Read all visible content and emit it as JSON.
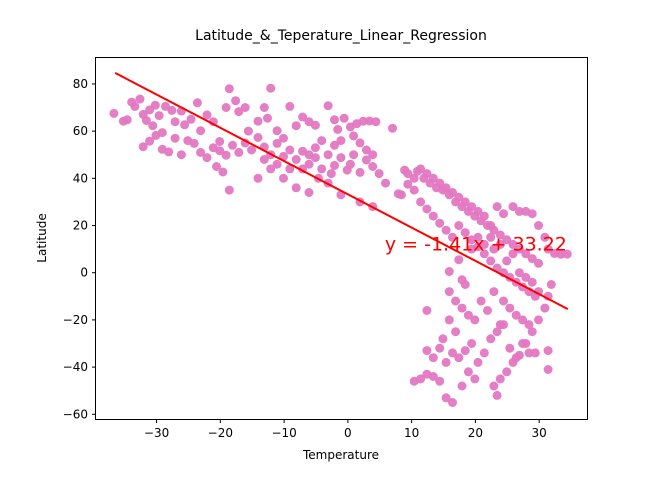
{
  "chart_data": {
    "type": "scatter",
    "title": "Latitude_&_Teperature_Linear_Regression",
    "xlabel": "Temperature",
    "ylabel": "Latitude",
    "xlim": [
      -39.5,
      37.5
    ],
    "ylim": [
      -62,
      91
    ],
    "xticks": [
      -30,
      -20,
      -10,
      0,
      10,
      20,
      30
    ],
    "yticks": [
      -60,
      -40,
      -20,
      0,
      20,
      40,
      60,
      80
    ],
    "grid": false,
    "marker_color": "#e377c2",
    "line_color": "#ff0000",
    "regression": {
      "slope": -1.41,
      "intercept": 33.22,
      "x_range": [
        -36.5,
        34.5
      ]
    },
    "annotation": {
      "text": "y = -1.41x + 33.22",
      "x": 5.8,
      "y": 9.5
    },
    "points": [
      [
        -36.7,
        67.5
      ],
      [
        -35.2,
        64.2
      ],
      [
        -34.6,
        64.8
      ],
      [
        -33.9,
        72.3
      ],
      [
        -33.4,
        70.5
      ],
      [
        -32.6,
        73.6
      ],
      [
        -32.1,
        67.1
      ],
      [
        -31.6,
        64.5
      ],
      [
        -31.1,
        69.0
      ],
      [
        -30.6,
        62.3
      ],
      [
        -30.2,
        71.0
      ],
      [
        -29.6,
        66.6
      ],
      [
        -29.1,
        59.4
      ],
      [
        -28.6,
        70.5
      ],
      [
        -27.6,
        68.8
      ],
      [
        -27.1,
        64.0
      ],
      [
        -26.1,
        68.5
      ],
      [
        -25.6,
        62.7
      ],
      [
        -24.6,
        65.0
      ],
      [
        -23.6,
        72.0
      ],
      [
        -23.1,
        60.2
      ],
      [
        -22.1,
        66.9
      ],
      [
        -21.1,
        64.0
      ],
      [
        -20.1,
        55.6
      ],
      [
        -19.1,
        70.0
      ],
      [
        -18.6,
        78.0
      ],
      [
        -17.6,
        72.9
      ],
      [
        -17.1,
        68.3
      ],
      [
        -16.1,
        70.0
      ],
      [
        -15.6,
        60.0
      ],
      [
        -14.1,
        64.2
      ],
      [
        -13.1,
        70.0
      ],
      [
        -12.1,
        78.2
      ],
      [
        -12.6,
        65.5
      ],
      [
        -11.1,
        60.2
      ],
      [
        -10.1,
        57.0
      ],
      [
        -9.1,
        70.5
      ],
      [
        -8.1,
        62.3
      ],
      [
        -7.1,
        66.0
      ],
      [
        -6.1,
        64.0
      ],
      [
        -5.1,
        62.5
      ],
      [
        -3.1,
        70.8
      ],
      [
        -2.1,
        64.8
      ],
      [
        -1.6,
        60.7
      ],
      [
        -0.6,
        65.5
      ],
      [
        0.4,
        61.8
      ],
      [
        1.4,
        63.2
      ],
      [
        2.4,
        64.2
      ],
      [
        3.4,
        64.3
      ],
      [
        4.4,
        64.0
      ],
      [
        7.0,
        61.2
      ],
      [
        -32.1,
        53.4
      ],
      [
        -31.1,
        55.8
      ],
      [
        -30.1,
        58.2
      ],
      [
        -29.1,
        52.3
      ],
      [
        -28.1,
        51.2
      ],
      [
        -27.1,
        57.0
      ],
      [
        -26.1,
        50.0
      ],
      [
        -25.1,
        56.0
      ],
      [
        -24.1,
        54.8
      ],
      [
        -23.1,
        51.0
      ],
      [
        -22.1,
        48.8
      ],
      [
        -21.1,
        53.0
      ],
      [
        -20.1,
        51.7
      ],
      [
        -19.1,
        49.8
      ],
      [
        -18.1,
        54.0
      ],
      [
        -17.1,
        51.0
      ],
      [
        -16.1,
        55.0
      ],
      [
        -15.1,
        52.0
      ],
      [
        -14.1,
        57.3
      ],
      [
        -13.1,
        53.3
      ],
      [
        -12.1,
        50.0
      ],
      [
        -11.1,
        54.8
      ],
      [
        -10.1,
        49.3
      ],
      [
        -9.1,
        52.0
      ],
      [
        -8.1,
        48.0
      ],
      [
        -7.1,
        51.5
      ],
      [
        -6.1,
        46.0
      ],
      [
        -5.1,
        48.8
      ],
      [
        -4.1,
        44.0
      ],
      [
        -3.1,
        50.0
      ],
      [
        -2.1,
        45.5
      ],
      [
        -1.1,
        48.8
      ],
      [
        -0.1,
        43.5
      ],
      [
        0.9,
        50.0
      ],
      [
        1.9,
        42.5
      ],
      [
        2.9,
        47.8
      ],
      [
        3.9,
        45.0
      ],
      [
        4.9,
        42.0
      ],
      [
        5.9,
        38.0
      ],
      [
        -20.6,
        45.0
      ],
      [
        -19.6,
        42.7
      ],
      [
        -18.6,
        35.0
      ],
      [
        -14.1,
        40.0
      ],
      [
        -12.1,
        44.0
      ],
      [
        -10.1,
        40.0
      ],
      [
        -8.1,
        36.0
      ],
      [
        -6.1,
        34.0
      ],
      [
        -3.1,
        38.0
      ],
      [
        -1.1,
        33.0
      ],
      [
        1.9,
        30.0
      ],
      [
        3.9,
        28.0
      ],
      [
        7.9,
        33.5
      ],
      [
        8.9,
        43.5
      ],
      [
        10.9,
        43.0
      ],
      [
        11.9,
        40.0
      ],
      [
        12.9,
        38.0
      ],
      [
        13.9,
        36.0
      ],
      [
        14.9,
        35.0
      ],
      [
        15.9,
        33.0
      ],
      [
        16.9,
        30.0
      ],
      [
        17.9,
        28.0
      ],
      [
        18.9,
        26.0
      ],
      [
        19.9,
        24.0
      ],
      [
        20.9,
        22.0
      ],
      [
        21.9,
        20.0
      ],
      [
        22.9,
        18.0
      ],
      [
        23.9,
        16.0
      ],
      [
        24.9,
        14.0
      ],
      [
        25.9,
        12.0
      ],
      [
        26.9,
        10.0
      ],
      [
        27.9,
        8.0
      ],
      [
        28.9,
        6.0
      ],
      [
        29.9,
        4.0
      ],
      [
        10.4,
        35.0
      ],
      [
        9.4,
        37.5
      ],
      [
        8.4,
        33.0
      ],
      [
        11.4,
        30.0
      ],
      [
        12.4,
        27.0
      ],
      [
        13.4,
        24.0
      ],
      [
        14.4,
        21.0
      ],
      [
        15.4,
        18.0
      ],
      [
        16.4,
        15.0
      ],
      [
        17.4,
        20.0
      ],
      [
        18.4,
        17.0
      ],
      [
        19.4,
        14.0
      ],
      [
        20.4,
        11.0
      ],
      [
        21.4,
        8.0
      ],
      [
        22.4,
        5.0
      ],
      [
        23.4,
        2.0
      ],
      [
        24.4,
        0.0
      ],
      [
        25.4,
        -2.0
      ],
      [
        26.4,
        -4.0
      ],
      [
        27.4,
        -6.0
      ],
      [
        28.4,
        -8.0
      ],
      [
        29.4,
        -10.0
      ],
      [
        25.9,
        28.0
      ],
      [
        26.9,
        26.0
      ],
      [
        27.9,
        26.0
      ],
      [
        28.9,
        25.0
      ],
      [
        29.9,
        20.0
      ],
      [
        30.9,
        15.0
      ],
      [
        31.4,
        10.0
      ],
      [
        32.4,
        8.2
      ],
      [
        33.4,
        7.8
      ],
      [
        34.4,
        7.9
      ],
      [
        31.9,
        -5.0
      ],
      [
        31.4,
        -10.0
      ],
      [
        30.9,
        -15.0
      ],
      [
        29.9,
        -20.0
      ],
      [
        28.9,
        -25.0
      ],
      [
        27.9,
        -30.0
      ],
      [
        26.9,
        -35.0
      ],
      [
        25.9,
        -38.0
      ],
      [
        24.9,
        -42.0
      ],
      [
        23.9,
        -45.0
      ],
      [
        22.9,
        -48.0
      ],
      [
        23.4,
        -52.0
      ],
      [
        19.9,
        -45.0
      ],
      [
        18.9,
        -42.0
      ],
      [
        17.9,
        -48.0
      ],
      [
        16.4,
        -55.0
      ],
      [
        15.4,
        -53.0
      ],
      [
        14.4,
        -46.0
      ],
      [
        13.4,
        -44.0
      ],
      [
        12.4,
        -43.0
      ],
      [
        11.4,
        -45.0
      ],
      [
        10.4,
        -46.0
      ],
      [
        12.4,
        -33.0
      ],
      [
        13.4,
        -36.0
      ],
      [
        14.4,
        -32.0
      ],
      [
        15.4,
        -38.0
      ],
      [
        16.4,
        -34.0
      ],
      [
        17.4,
        -36.0
      ],
      [
        18.4,
        -33.0
      ],
      [
        19.4,
        -30.0
      ],
      [
        20.4,
        -38.0
      ],
      [
        21.4,
        -34.0
      ],
      [
        22.4,
        -28.0
      ],
      [
        23.4,
        -25.0
      ],
      [
        24.4,
        -22.0
      ],
      [
        25.4,
        -32.0
      ],
      [
        26.4,
        -36.0
      ],
      [
        27.4,
        -30.0
      ],
      [
        28.4,
        -34.0
      ],
      [
        29.4,
        -34.0
      ],
      [
        31.4,
        -33.0
      ],
      [
        31.4,
        -41.0
      ],
      [
        15.9,
        -8.0
      ],
      [
        16.9,
        -12.0
      ],
      [
        17.9,
        -3.0
      ],
      [
        17.9,
        -15.0
      ],
      [
        18.9,
        -18.0
      ],
      [
        19.9,
        -20.0
      ],
      [
        20.9,
        -12.0
      ],
      [
        21.9,
        -16.0
      ],
      [
        22.9,
        -8.0
      ],
      [
        23.9,
        -22.0
      ],
      [
        15.9,
        -20.0
      ],
      [
        16.9,
        -25.0
      ],
      [
        14.9,
        -28.0
      ],
      [
        12.4,
        -16.0
      ],
      [
        15.9,
        0.5
      ],
      [
        17.4,
        5.5
      ],
      [
        18.4,
        -5.0
      ],
      [
        19.4,
        10.0
      ],
      [
        20.4,
        15.0
      ],
      [
        21.4,
        12.0
      ],
      [
        22.4,
        15.0
      ],
      [
        22.9,
        10.0
      ],
      [
        23.9,
        12.0
      ],
      [
        24.9,
        5.0
      ],
      [
        25.9,
        8.0
      ],
      [
        26.9,
        0.0
      ],
      [
        27.9,
        -2.0
      ],
      [
        28.9,
        -4.0
      ],
      [
        29.9,
        -8.0
      ],
      [
        24.4,
        -12.0
      ],
      [
        25.4,
        -15.0
      ],
      [
        26.4,
        -18.0
      ],
      [
        27.4,
        -20.0
      ],
      [
        28.4,
        -22.0
      ],
      [
        24.4,
        25.0
      ],
      [
        23.4,
        28.0
      ],
      [
        22.4,
        20.0
      ],
      [
        21.4,
        24.0
      ],
      [
        20.4,
        26.0
      ],
      [
        19.4,
        28.0
      ],
      [
        18.4,
        30.0
      ],
      [
        17.4,
        32.0
      ],
      [
        16.4,
        34.0
      ],
      [
        15.4,
        36.0
      ],
      [
        14.4,
        38.0
      ],
      [
        13.4,
        40.0
      ],
      [
        12.4,
        42.0
      ],
      [
        11.4,
        44.0
      ],
      [
        10.4,
        40.0
      ],
      [
        9.4,
        42.0
      ],
      [
        -4.1,
        56.0
      ],
      [
        -2.1,
        54.0
      ],
      [
        -1.1,
        56.0
      ],
      [
        0.9,
        58.0
      ],
      [
        1.9,
        55.0
      ],
      [
        2.9,
        52.0
      ],
      [
        3.9,
        50.0
      ],
      [
        -6.1,
        50.0
      ],
      [
        -5.1,
        53.0
      ],
      [
        -7.1,
        44.0
      ],
      [
        -4.6,
        40.0
      ],
      [
        -2.6,
        42.0
      ],
      [
        0.4,
        46.0
      ],
      [
        -9.1,
        44.0
      ],
      [
        -11.1,
        46.0
      ],
      [
        -13.1,
        48.0
      ]
    ]
  }
}
